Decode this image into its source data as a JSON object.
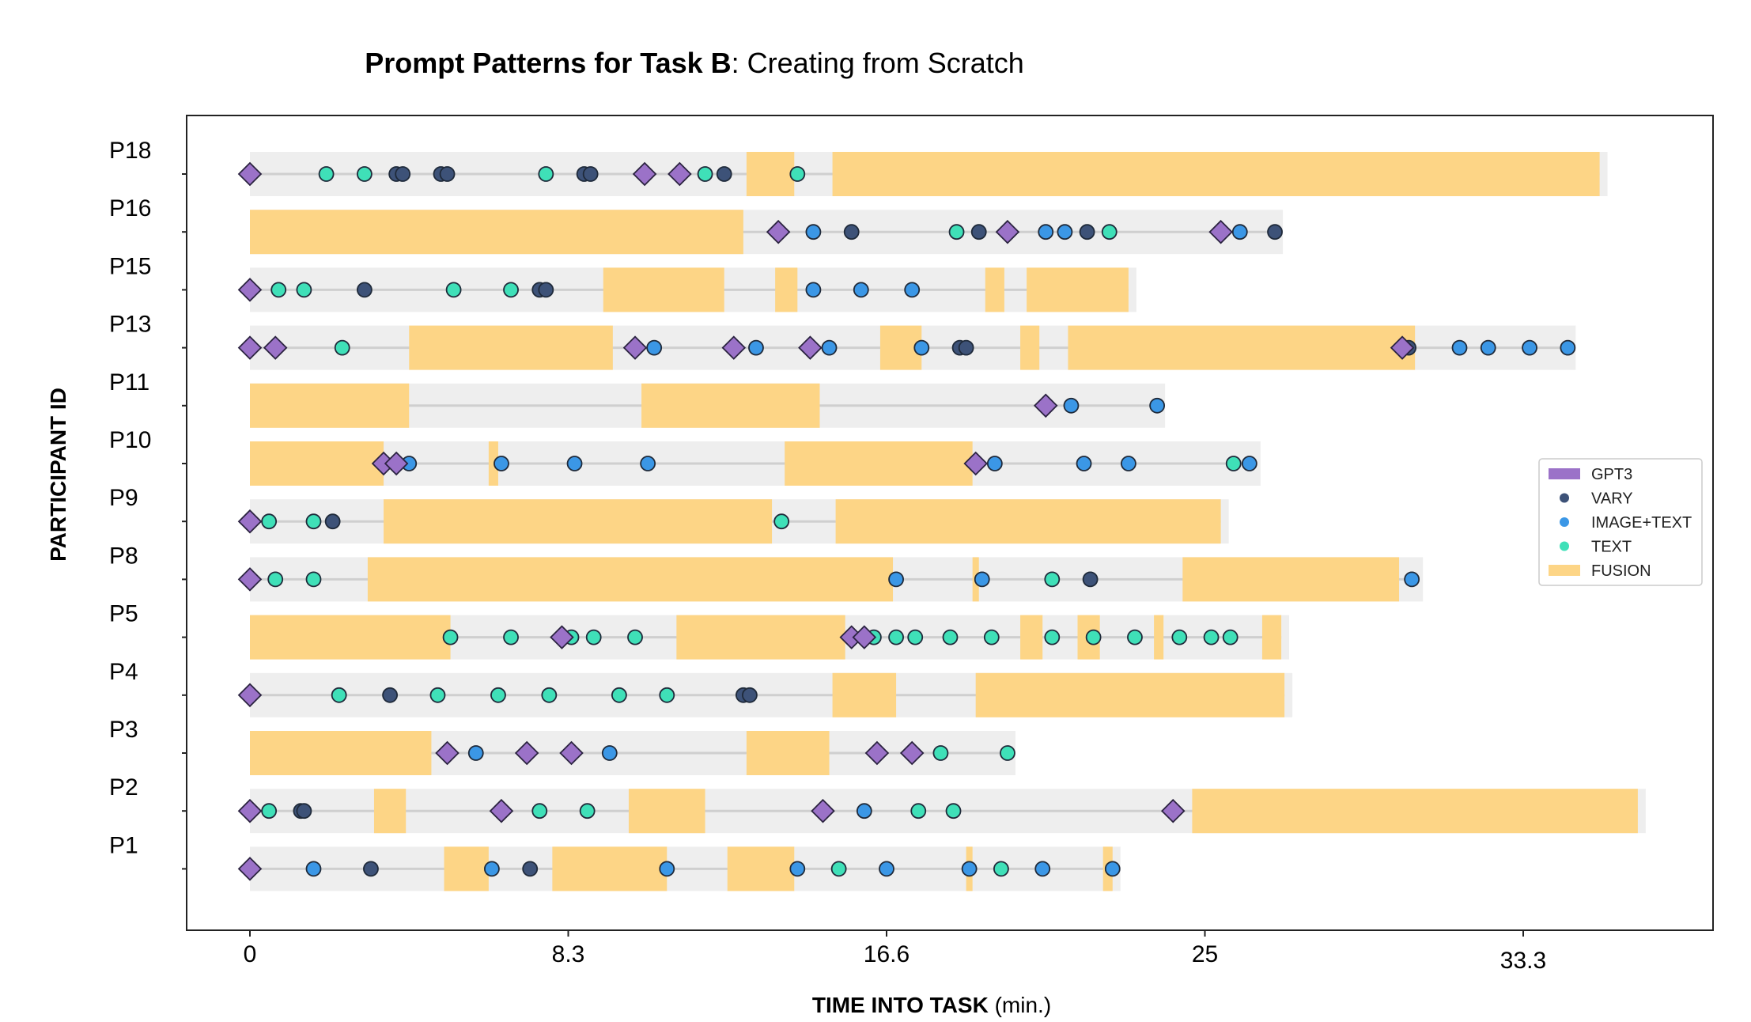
{
  "chart_data": {
    "type": "timeline",
    "title_bold": "Prompt Patterns for Task B",
    "title_rest": ": Creating from Scratch",
    "xlabel_bold": "TIME INTO TASK",
    "xlabel_rest": " (min.)",
    "ylabel": "PARTICIPANT ID",
    "xlim": [
      -2,
      46
    ],
    "x_ticks": [
      {
        "value": 0,
        "label": "0"
      },
      {
        "value": 10,
        "label": "8.3"
      },
      {
        "value": 20,
        "label": "16.6"
      },
      {
        "value": 30,
        "label": "25"
      },
      {
        "value": 40,
        "label": "33.3"
      }
    ],
    "colors": {
      "GPT3": "#9b72c8",
      "VARY": "#3d5278",
      "IMAGE+TEXT": "#3b97e6",
      "TEXT": "#3fe0b8",
      "FUSION": "#fdd586",
      "track": "#eeeeee",
      "line": "#cfcfcf"
    },
    "legend": {
      "placement": "right",
      "entries": [
        {
          "key": "GPT3",
          "label": "GPT3",
          "shape": "bar"
        },
        {
          "key": "VARY",
          "label": "VARY",
          "shape": "dot"
        },
        {
          "key": "IMAGE+TEXT",
          "label": "IMAGE+TEXT",
          "shape": "dot"
        },
        {
          "key": "TEXT",
          "label": "TEXT",
          "shape": "dot"
        },
        {
          "key": "FUSION",
          "label": "FUSION",
          "shape": "bar"
        }
      ]
    },
    "participants": [
      {
        "id": "P18",
        "end": 42.4,
        "fusion": [
          [
            15.6,
            17.1
          ],
          [
            18.3,
            42.4
          ]
        ],
        "gpt3": [
          0,
          12.4,
          13.5
        ],
        "vary": [
          4.6,
          4.8,
          6.0,
          6.2,
          10.5,
          10.7,
          14.9
        ],
        "imagetext": [],
        "text": [
          2.4,
          3.6,
          9.3,
          14.3,
          17.2
        ]
      },
      {
        "id": "P16",
        "end": 32.2,
        "fusion": [
          [
            0,
            15.5
          ]
        ],
        "gpt3": [
          16.6,
          23.8,
          30.5
        ],
        "vary": [
          18.9,
          22.9,
          26.3,
          32.2
        ],
        "imagetext": [
          17.7,
          25.0,
          25.6,
          31.1
        ],
        "text": [
          22.2,
          27.0
        ]
      },
      {
        "id": "P15",
        "end": 27.6,
        "fusion": [
          [
            11.1,
            14.9
          ],
          [
            16.5,
            17.2
          ],
          [
            23.1,
            23.7
          ],
          [
            24.4,
            27.6
          ]
        ],
        "gpt3": [
          0
        ],
        "vary": [
          3.6,
          9.1,
          9.3
        ],
        "imagetext": [
          17.7,
          19.2,
          20.8
        ],
        "text": [
          0.9,
          1.7,
          6.4,
          8.2
        ]
      },
      {
        "id": "P13",
        "end": 41.4,
        "fusion": [
          [
            5.0,
            11.4
          ],
          [
            19.8,
            21.1
          ],
          [
            24.2,
            24.8
          ],
          [
            25.7,
            36.6
          ]
        ],
        "gpt3": [
          0,
          0.8,
          12.1,
          15.2,
          17.6,
          36.2
        ],
        "vary": [
          22.3,
          22.5,
          36.4
        ],
        "imagetext": [
          12.7,
          15.9,
          18.2,
          21.1,
          38.0,
          38.9,
          40.2,
          41.4
        ],
        "text": [
          2.9
        ]
      },
      {
        "id": "P11",
        "end": 28.5,
        "fusion": [
          [
            0,
            5.0
          ],
          [
            12.3,
            17.9
          ]
        ],
        "gpt3": [
          25.0
        ],
        "vary": [],
        "imagetext": [
          25.8,
          28.5
        ],
        "text": []
      },
      {
        "id": "P10",
        "end": 31.5,
        "fusion": [
          [
            0,
            4.2
          ],
          [
            7.5,
            7.8
          ],
          [
            16.8,
            22.7
          ]
        ],
        "gpt3": [
          4.2,
          4.6,
          22.8
        ],
        "vary": [],
        "imagetext": [
          5.0,
          7.9,
          10.2,
          12.5,
          23.4,
          26.2,
          27.6,
          31.4
        ],
        "text": [
          30.9
        ]
      },
      {
        "id": "P9",
        "end": 30.5,
        "fusion": [
          [
            4.2,
            16.4
          ],
          [
            18.4,
            30.5
          ]
        ],
        "gpt3": [
          0
        ],
        "vary": [
          2.6
        ],
        "imagetext": [],
        "text": [
          0.6,
          2.0,
          16.7
        ]
      },
      {
        "id": "P8",
        "end": 36.6,
        "fusion": [
          [
            3.7,
            20.2
          ],
          [
            22.7,
            22.9
          ],
          [
            29.3,
            36.1
          ]
        ],
        "gpt3": [
          0
        ],
        "vary": [
          26.4
        ],
        "imagetext": [
          20.3,
          23.0,
          36.5
        ],
        "text": [
          0.8,
          2.0,
          25.2
        ]
      },
      {
        "id": "P5",
        "end": 32.4,
        "fusion": [
          [
            0,
            6.3
          ],
          [
            13.4,
            18.7
          ],
          [
            24.2,
            24.9
          ],
          [
            26.0,
            26.7
          ],
          [
            28.4,
            28.7
          ],
          [
            31.8,
            32.4
          ]
        ],
        "gpt3": [
          9.8,
          18.9,
          19.3
        ],
        "vary": [],
        "imagetext": [],
        "text": [
          6.3,
          8.2,
          10.1,
          10.8,
          12.1,
          19.6,
          20.3,
          20.9,
          22.0,
          23.3,
          25.2,
          26.5,
          27.8,
          29.2,
          30.2,
          30.8
        ]
      },
      {
        "id": "P4",
        "end": 32.5,
        "fusion": [
          [
            18.3,
            20.3
          ],
          [
            22.8,
            32.5
          ]
        ],
        "gpt3": [
          0
        ],
        "vary": [
          4.4,
          15.5,
          15.7
        ],
        "imagetext": [],
        "text": [
          2.8,
          5.9,
          7.8,
          9.4,
          11.6,
          13.1
        ]
      },
      {
        "id": "P3",
        "end": 23.8,
        "fusion": [
          [
            0,
            5.7
          ],
          [
            15.6,
            18.2
          ]
        ],
        "gpt3": [
          6.2,
          8.7,
          10.1,
          19.7,
          20.8
        ],
        "vary": [],
        "imagetext": [
          7.1,
          11.3
        ],
        "text": [
          21.7,
          23.8
        ]
      },
      {
        "id": "P2",
        "end": 43.6,
        "fusion": [
          [
            3.9,
            4.9
          ],
          [
            11.9,
            14.3
          ],
          [
            29.6,
            43.6
          ]
        ],
        "gpt3": [
          0,
          7.9,
          18.0,
          29.0
        ],
        "vary": [
          1.6,
          1.7
        ],
        "imagetext": [
          19.3
        ],
        "text": [
          0.6,
          9.1,
          10.6,
          21.0,
          22.1
        ]
      },
      {
        "id": "P1",
        "end": 27.1,
        "fusion": [
          [
            6.1,
            7.5
          ],
          [
            9.5,
            13.1
          ],
          [
            15.0,
            17.1
          ],
          [
            22.5,
            22.7
          ],
          [
            26.8,
            27.1
          ]
        ],
        "gpt3": [
          0
        ],
        "vary": [
          3.8,
          8.8
        ],
        "imagetext": [
          2.0,
          7.6,
          13.1,
          17.2,
          20.0,
          22.6,
          24.9,
          27.1
        ],
        "text": [
          18.5,
          23.6
        ]
      }
    ]
  }
}
